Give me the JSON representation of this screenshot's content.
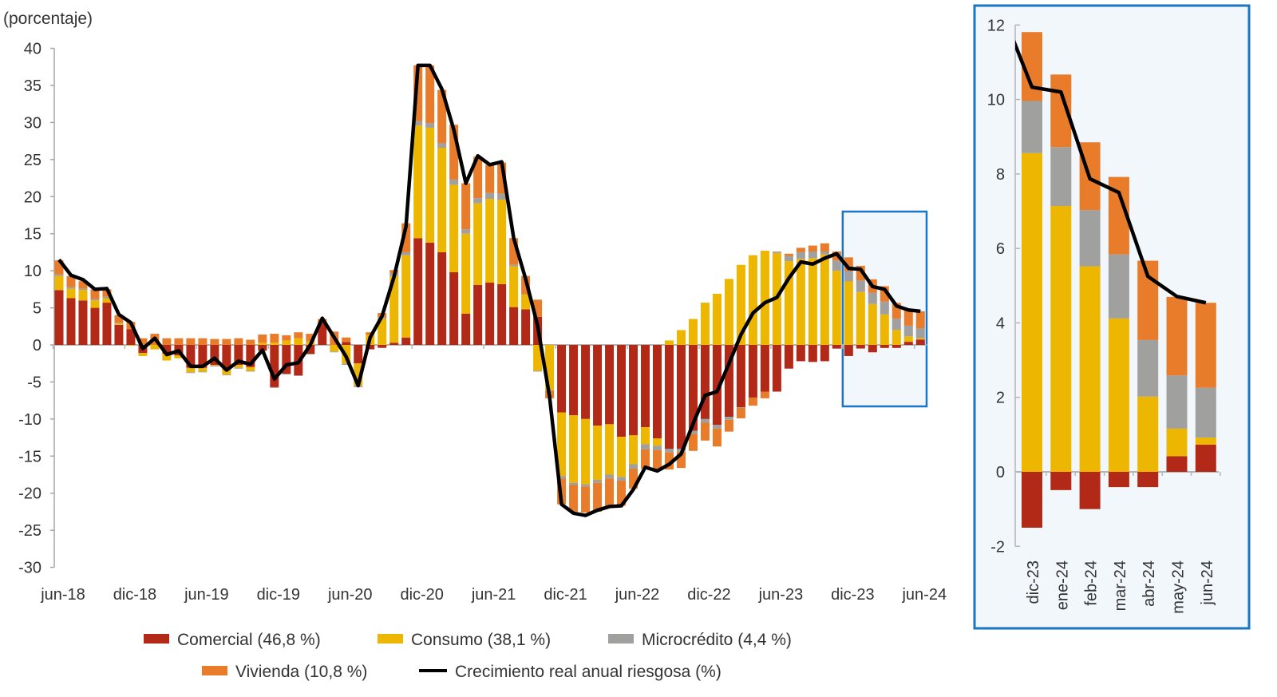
{
  "chart_data": [
    {
      "type": "bar",
      "stacked": true,
      "title": "",
      "ylabel": "(porcentaje)",
      "xlabel": "",
      "ylim": [
        -30,
        40
      ],
      "ytick_step": 5,
      "yticks": [
        "40",
        "35",
        "30",
        "25",
        "20",
        "15",
        "10",
        "5",
        "0",
        "-5",
        "-10",
        "-15",
        "-20",
        "-25",
        "-30"
      ],
      "x_tick_every": 6,
      "x_tick_labels": [
        "jun-18",
        "dic-18",
        "jun-19",
        "dic-19",
        "jun-20",
        "dic-20",
        "jun-21",
        "dic-21",
        "jun-22",
        "dic-22",
        "jun-23",
        "dic-23",
        "jun-24"
      ],
      "highlight": {
        "from_label": "dic-23",
        "to_label": "jun-24"
      },
      "series": [
        {
          "name": "Comercial (46,8 %)",
          "color": "#B22A17",
          "values": [
            7.4,
            6.3,
            6.0,
            5.0,
            5.7,
            2.7,
            2.1,
            -1.1,
            0,
            -1.2,
            -1.4,
            -3.1,
            -3.1,
            -2.7,
            -3.3,
            -2.7,
            -3.0,
            -0.8,
            -5.7,
            -3.9,
            -4.1,
            -1.2,
            3.0,
            0,
            0.4,
            -2.5,
            -0.6,
            -0.4,
            0.3,
            1.0,
            14.4,
            13.8,
            12.5,
            9.8,
            4.2,
            8.1,
            8.4,
            8.2,
            5.1,
            4.8,
            3.8,
            0,
            -9.1,
            -9.5,
            -10.0,
            -10.9,
            -10.7,
            -12.4,
            -12.2,
            -11.1,
            -12.6,
            -14.0,
            -14.0,
            -11.6,
            -10.0,
            -10.8,
            -9.7,
            -8.4,
            -7.1,
            -6.3,
            -6.3,
            -3.2,
            -2.2,
            -2.3,
            -2.2,
            -0.5,
            -1.5,
            -0.49,
            -1.0,
            -0.41,
            -0.41,
            0.42,
            0.73
          ]
        },
        {
          "name": "Consumo (38,1 %)",
          "color": "#EDB600",
          "values": [
            1.9,
            1.3,
            1.4,
            1.0,
            0.6,
            0.2,
            -0.1,
            -0.4,
            -0.6,
            -0.9,
            -0.4,
            -0.6,
            -0.5,
            -0.1,
            -0.7,
            -0.4,
            -0.5,
            0.3,
            0.3,
            0.6,
            0.9,
            0.5,
            0,
            -0.9,
            -2.5,
            -3.0,
            1.4,
            3.5,
            9.0,
            11.1,
            15.2,
            15.5,
            14.1,
            11.8,
            10.8,
            11.0,
            11.3,
            11.4,
            5.5,
            2.0,
            -3.5,
            -6.1,
            -8.6,
            -9.1,
            -8.8,
            -7.3,
            -6.8,
            -5.4,
            -3.9,
            -2.3,
            -1.0,
            0.6,
            2.0,
            3.5,
            5.7,
            6.9,
            8.9,
            10.8,
            12.1,
            12.7,
            12.4,
            11.3,
            11.6,
            11.7,
            12.2,
            10.0,
            8.56,
            7.14,
            5.52,
            4.12,
            2.02,
            0.74,
            0.19
          ]
        },
        {
          "name": "Microcrédito (4,4 %)",
          "color": "#A0A09E",
          "values": [
            0.2,
            0.2,
            0.2,
            0.2,
            0.2,
            0.1,
            0,
            0,
            0,
            0,
            0,
            -0.1,
            -0.1,
            -0.1,
            -0.1,
            -0.1,
            -0.1,
            0,
            -0.1,
            -0.1,
            -0.1,
            -0.1,
            0,
            -0.1,
            -0.2,
            -0.2,
            0,
            0.2,
            0.4,
            0.4,
            0.6,
            0.6,
            0.6,
            0.7,
            0.6,
            0.7,
            0.8,
            0.8,
            0.2,
            0,
            -0.1,
            -0.1,
            -0.3,
            -0.3,
            -0.3,
            -0.4,
            -0.5,
            -0.5,
            -0.6,
            -0.7,
            -0.6,
            -0.5,
            -0.4,
            -0.4,
            -0.5,
            -0.5,
            -0.4,
            -0.1,
            0,
            0,
            0.2,
            0.7,
            0.9,
            0.9,
            0.4,
            1.4,
            1.4,
            1.58,
            1.51,
            1.72,
            1.52,
            1.43,
            1.34
          ]
        },
        {
          "name": "Vivienda (10,8 %)",
          "color": "#E87C2A",
          "values": [
            1.9,
            1.5,
            1.0,
            1.3,
            1.0,
            1.0,
            1.0,
            0.9,
            1.5,
            0.9,
            0.9,
            0.9,
            0.9,
            0.8,
            0.8,
            0.9,
            0.7,
            1.1,
            1.2,
            0.7,
            0.8,
            1.0,
            0.5,
            1.8,
            0.6,
            0,
            0.3,
            0.6,
            0.4,
            3.9,
            7.5,
            7.8,
            7.2,
            7.4,
            6.2,
            5.6,
            3.8,
            4.2,
            3.6,
            2.5,
            2.3,
            -1.0,
            -3.5,
            -3.6,
            -3.5,
            -3.9,
            -3.9,
            -3.4,
            -2.7,
            -2.6,
            -2.6,
            -2.3,
            -2.2,
            -2.3,
            -2.4,
            -2.4,
            -1.6,
            -1.4,
            -1.1,
            -0.9,
            0,
            0.3,
            0.6,
            0.8,
            1.1,
            1.2,
            1.85,
            1.95,
            1.82,
            2.08,
            2.13,
            2.11,
            2.28
          ]
        }
      ],
      "line": {
        "name": "Crecimiento real anual riesgosa (%)",
        "color": "#000000",
        "values": [
          11.5,
          9.4,
          8.8,
          7.5,
          7.6,
          4.1,
          3.0,
          -0.5,
          0.9,
          -1.3,
          -0.8,
          -2.9,
          -2.9,
          -1.8,
          -3.4,
          -2.2,
          -2.6,
          -0.7,
          -4.6,
          -2.7,
          -2.4,
          0,
          3.6,
          1.0,
          -1.6,
          -5.5,
          1.0,
          3.9,
          9.2,
          16.0,
          37.7,
          37.7,
          34.5,
          29.0,
          21.8,
          25.5,
          24.3,
          24.7,
          14.4,
          8.9,
          2.6,
          -7.0,
          -21.5,
          -22.7,
          -23.0,
          -22.3,
          -21.8,
          -21.7,
          -19.5,
          -16.5,
          -17.0,
          -16.1,
          -14.7,
          -10.6,
          -6.8,
          -6.3,
          -2.5,
          1.4,
          4.3,
          5.7,
          6.4,
          9.0,
          11.2,
          10.9,
          11.7,
          12.3,
          10.33,
          10.2,
          7.87,
          7.5,
          5.25,
          4.71,
          4.54
        ]
      },
      "legend": {
        "placement": "bottom"
      }
    },
    {
      "type": "bar",
      "stacked": true,
      "title": "",
      "ylim": [
        -2,
        12
      ],
      "ytick_step": 2,
      "yticks": [
        "12",
        "10",
        "8",
        "6",
        "4",
        "2",
        "0",
        "-2"
      ],
      "categories": [
        "dic-23",
        "ene-24",
        "feb-24",
        "mar-24",
        "abr-24",
        "may-24",
        "jun-24"
      ],
      "series": [
        {
          "name": "Comercial",
          "color": "#B22A17",
          "values": [
            -1.5,
            -0.49,
            -1.0,
            -0.41,
            -0.41,
            0.42,
            0.73
          ]
        },
        {
          "name": "Consumo",
          "color": "#EDB600",
          "values": [
            8.56,
            7.14,
            5.52,
            4.12,
            2.02,
            0.74,
            0.19
          ]
        },
        {
          "name": "Microcrédito",
          "color": "#A0A09E",
          "values": [
            1.4,
            1.58,
            1.51,
            1.72,
            1.52,
            1.43,
            1.34
          ]
        },
        {
          "name": "Vivienda",
          "color": "#E87C2A",
          "values": [
            1.85,
            1.95,
            1.82,
            2.08,
            2.13,
            2.11,
            2.28
          ]
        }
      ],
      "line": {
        "name": "Crecimiento real anual riesgosa (%)",
        "color": "#000000",
        "values": [
          10.33,
          10.2,
          7.87,
          7.5,
          5.25,
          4.71,
          4.54
        ]
      },
      "panel_border_color": "#1A75C2",
      "panel_fill_color": "#F2F7FC"
    }
  ]
}
